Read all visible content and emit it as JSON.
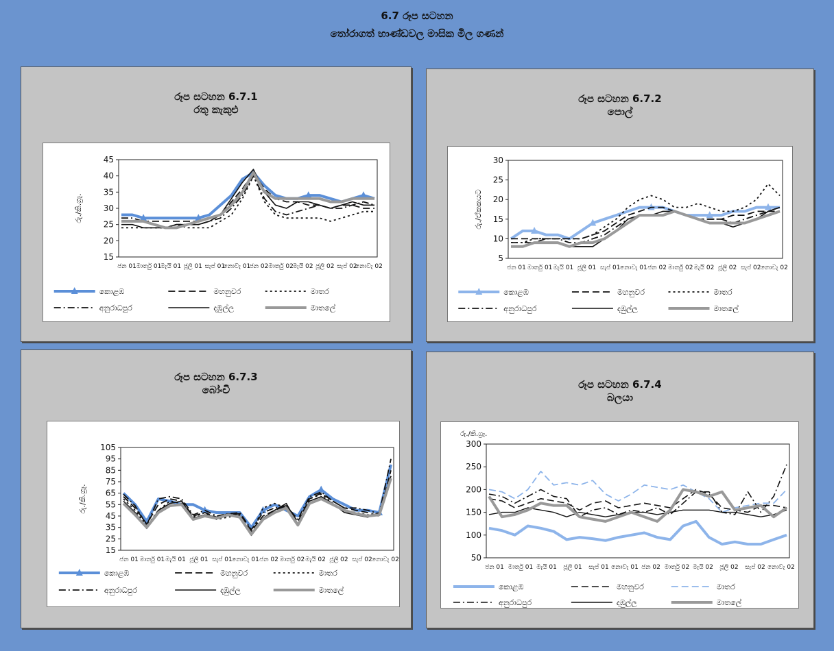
{
  "page": {
    "title": "6.7 රූප සටහන",
    "subtitle": "තෝරාගත් භාණ්ඩවල මාසික මිල ගණන්"
  },
  "x_labels": [
    "ජන 01",
    "මාර්තු 01",
    "මැයි 01",
    "ජූලි 01",
    "සැප් 01",
    "නොවැ 01",
    "ජන 02",
    "මාර්තු 02",
    "මැයි 02",
    "ජූලි 02",
    "සැප් 02",
    "නොවැ 02"
  ],
  "legend": [
    "කොළඹ",
    "මහනුවර",
    "මාතර",
    "අනුරාධපුර",
    "දඹුල්ල",
    "මාතලේ"
  ],
  "colors": {
    "accent_blue": "#5b8fd8",
    "light_blue": "#8db4ea",
    "dark": "#111111",
    "gray": "#999999",
    "background": "#6b94cf"
  },
  "charts": [
    {
      "title": "රූප සටහන 6.7.1",
      "subtitle": "රතු කැකුළු",
      "ylabel": "රු./කි.ග්‍රෑ.",
      "chart_data": {
        "type": "line",
        "ylim": [
          15,
          45
        ],
        "yticks": [
          15,
          20,
          25,
          30,
          35,
          40,
          45
        ],
        "grid": false,
        "legend_position": "bottom",
        "series": [
          {
            "name": "කොළඹ",
            "values": [
              28,
              28,
              27,
              27,
              27,
              27,
              27,
              27,
              28,
              31,
              34,
              39,
              41,
              37,
              34,
              33,
              33,
              34,
              34,
              33,
              32,
              33,
              34,
              33
            ]
          },
          {
            "name": "මහනුවර",
            "values": [
              26,
              26,
              26,
              26,
              26,
              26,
              26,
              26,
              27,
              28,
              32,
              36,
              41,
              36,
              33,
              32,
              32,
              31,
              31,
              30,
              31,
              31,
              30,
              30
            ]
          },
          {
            "name": "මාතර",
            "values": [
              24,
              24,
              24,
              24,
              24,
              25,
              24,
              24,
              24,
              26,
              28,
              33,
              40,
              32,
              28,
              27,
              27,
              27,
              27,
              26,
              27,
              28,
              29,
              29
            ]
          },
          {
            "name": "අනුරාධපුර",
            "values": [
              27,
              27,
              26,
              25,
              24,
              25,
              25,
              25,
              26,
              27,
              30,
              34,
              40,
              33,
              29,
              28,
              29,
              30,
              31,
              30,
              30,
              31,
              32,
              31
            ]
          },
          {
            "name": "දඹුල්ල",
            "values": [
              25,
              25,
              24,
              24,
              24,
              25,
              25,
              25,
              26,
              28,
              33,
              38,
              42,
              35,
              31,
              30,
              32,
              32,
              31,
              30,
              31,
              32,
              31,
              31
            ]
          },
          {
            "name": "මාතලේ",
            "values": [
              26,
              26,
              26,
              25,
              24,
              24,
              25,
              26,
              27,
              28,
              31,
              35,
              41,
              35,
              33,
              33,
              33,
              33,
              33,
              32,
              32,
              33,
              33,
              33
            ]
          }
        ]
      }
    },
    {
      "title": "රූප සටහන 6.7.2",
      "subtitle": "පොල්",
      "ylabel": "රු./ඒකකයට",
      "chart_data": {
        "type": "line",
        "ylim": [
          5,
          30
        ],
        "yticks": [
          5,
          10,
          15,
          20,
          25,
          30
        ],
        "grid": false,
        "legend_position": "bottom",
        "series": [
          {
            "name": "කොළඹ",
            "values": [
              10,
              12,
              12,
              11,
              11,
              10,
              12,
              14,
              15,
              16,
              17,
              18,
              18,
              18,
              17,
              16,
              16,
              16,
              16,
              17,
              17,
              18,
              18,
              18
            ]
          },
          {
            "name": "මහනුවර",
            "values": [
              10,
              10,
              10,
              10,
              10,
              10,
              10,
              11,
              12,
              14,
              16,
              17,
              18,
              18,
              17,
              16,
              15,
              15,
              15,
              16,
              16,
              17,
              17,
              17
            ]
          },
          {
            "name": "මාතර",
            "values": [
              9,
              9,
              10,
              10,
              10,
              10,
              10,
              11,
              13,
              15,
              18,
              20,
              21,
              20,
              18,
              18,
              19,
              18,
              17,
              17,
              18,
              20,
              24,
              21
            ]
          },
          {
            "name": "අනුරාධපුර",
            "values": [
              9,
              9,
              9,
              10,
              10,
              9,
              9,
              10,
              11,
              13,
              15,
              16,
              16,
              16,
              17,
              16,
              15,
              15,
              15,
              14,
              15,
              16,
              17,
              18
            ]
          },
          {
            "name": "දඹුල්ල",
            "values": [
              8,
              8,
              9,
              9,
              9,
              8,
              8,
              8,
              10,
              12,
              15,
              16,
              16,
              17,
              17,
              16,
              15,
              14,
              14,
              13,
              14,
              15,
              17,
              18
            ]
          },
          {
            "name": "මාතලේ",
            "values": [
              8,
              8,
              9,
              9,
              9,
              8,
              9,
              9,
              10,
              12,
              14,
              16,
              16,
              16,
              17,
              16,
              15,
              14,
              14,
              14,
              14,
              15,
              16,
              17
            ]
          }
        ]
      }
    },
    {
      "title": "රූප සටහන 6.7.3",
      "subtitle": "බෝංචි",
      "ylabel": "රු./කි.ග්‍රෑ.",
      "chart_data": {
        "type": "line",
        "ylim": [
          15,
          105
        ],
        "yticks": [
          15,
          25,
          35,
          45,
          55,
          65,
          75,
          85,
          95,
          105
        ],
        "grid": false,
        "legend_position": "bottom",
        "series": [
          {
            "name": "කොළඹ",
            "values": [
              65,
              55,
              40,
              60,
              58,
              55,
              55,
              50,
              48,
              48,
              48,
              35,
              50,
              55,
              50,
              45,
              62,
              68,
              60,
              55,
              50,
              50,
              48,
              90
            ]
          },
          {
            "name": "මහනුවර",
            "values": [
              62,
              52,
              38,
              55,
              60,
              58,
              45,
              48,
              44,
              46,
              47,
              32,
              45,
              50,
              54,
              40,
              60,
              65,
              58,
              52,
              50,
              48,
              45,
              85
            ]
          },
          {
            "name": "මාතර",
            "values": [
              60,
              50,
              36,
              50,
              58,
              56,
              44,
              48,
              42,
              44,
              46,
              30,
              52,
              56,
              52,
              38,
              60,
              64,
              56,
              50,
              48,
              46,
              45,
              80
            ]
          },
          {
            "name": "අනුරාධපුර",
            "values": [
              64,
              54,
              37,
              60,
              62,
              60,
              46,
              50,
              45,
              47,
              48,
              33,
              48,
              52,
              54,
              42,
              62,
              66,
              58,
              52,
              52,
              50,
              47,
              95
            ]
          },
          {
            "name": "දඹුල්ල",
            "values": [
              58,
              48,
              34,
              50,
              56,
              58,
              43,
              46,
              44,
              47,
              45,
              28,
              43,
              50,
              56,
              38,
              58,
              62,
              56,
              48,
              46,
              44,
              48,
              80
            ]
          },
          {
            "name": "මාතලේ",
            "values": [
              56,
              46,
              35,
              48,
              54,
              55,
              42,
              45,
              43,
              46,
              44,
              29,
              42,
              48,
              52,
              37,
              56,
              60,
              55,
              50,
              47,
              45,
              46,
              78
            ]
          }
        ]
      }
    },
    {
      "title": "රූප සටහන 6.7.4",
      "subtitle": "බලයා",
      "ylabel": "රු./කි.ග්‍රෑ.",
      "chart_data": {
        "type": "line",
        "ylim": [
          50,
          300
        ],
        "yticks": [
          50,
          100,
          150,
          200,
          250,
          300
        ],
        "grid": false,
        "legend_position": "bottom",
        "series": [
          {
            "name": "කොළඹ",
            "values": [
              115,
              110,
              100,
              120,
              115,
              108,
              90,
              95,
              92,
              88,
              95,
              100,
              105,
              95,
              90,
              120,
              130,
              95,
              80,
              85,
              80,
              80,
              90,
              100
            ]
          },
          {
            "name": "මහනුවර",
            "values": [
              180,
              175,
              160,
              170,
              180,
              175,
              170,
              155,
              170,
              175,
              160,
              165,
              170,
              165,
              160,
              180,
              200,
              190,
              160,
              155,
              150,
              165,
              165,
              160
            ]
          },
          {
            "name": "මාතර",
            "values": [
              200,
              195,
              180,
              200,
              240,
              210,
              215,
              210,
              220,
              190,
              175,
              190,
              210,
              205,
              200,
              210,
              195,
              180,
              150,
              160,
              165,
              170,
              170,
              200
            ]
          },
          {
            "name": "අනුරාධපුර",
            "values": [
              190,
              185,
              170,
              185,
              200,
              185,
              180,
              140,
              155,
              160,
              145,
              155,
              150,
              160,
              145,
              170,
              195,
              195,
              150,
              145,
              195,
              150,
              185,
              255
            ]
          },
          {
            "name": "දඹුල්ල",
            "values": [
              145,
              150,
              150,
              160,
              155,
              150,
              140,
              150,
              145,
              140,
              145,
              150,
              150,
              145,
              150,
              155,
              155,
              155,
              150,
              150,
              145,
              140,
              145,
              155
            ]
          },
          {
            "name": "මාතලේ",
            "values": [
              185,
              140,
              145,
              155,
              170,
              165,
              165,
              140,
              135,
              130,
              140,
              150,
              140,
              130,
              155,
              200,
              195,
              185,
              195,
              155,
              160,
              165,
              140,
              160
            ]
          }
        ]
      }
    }
  ]
}
